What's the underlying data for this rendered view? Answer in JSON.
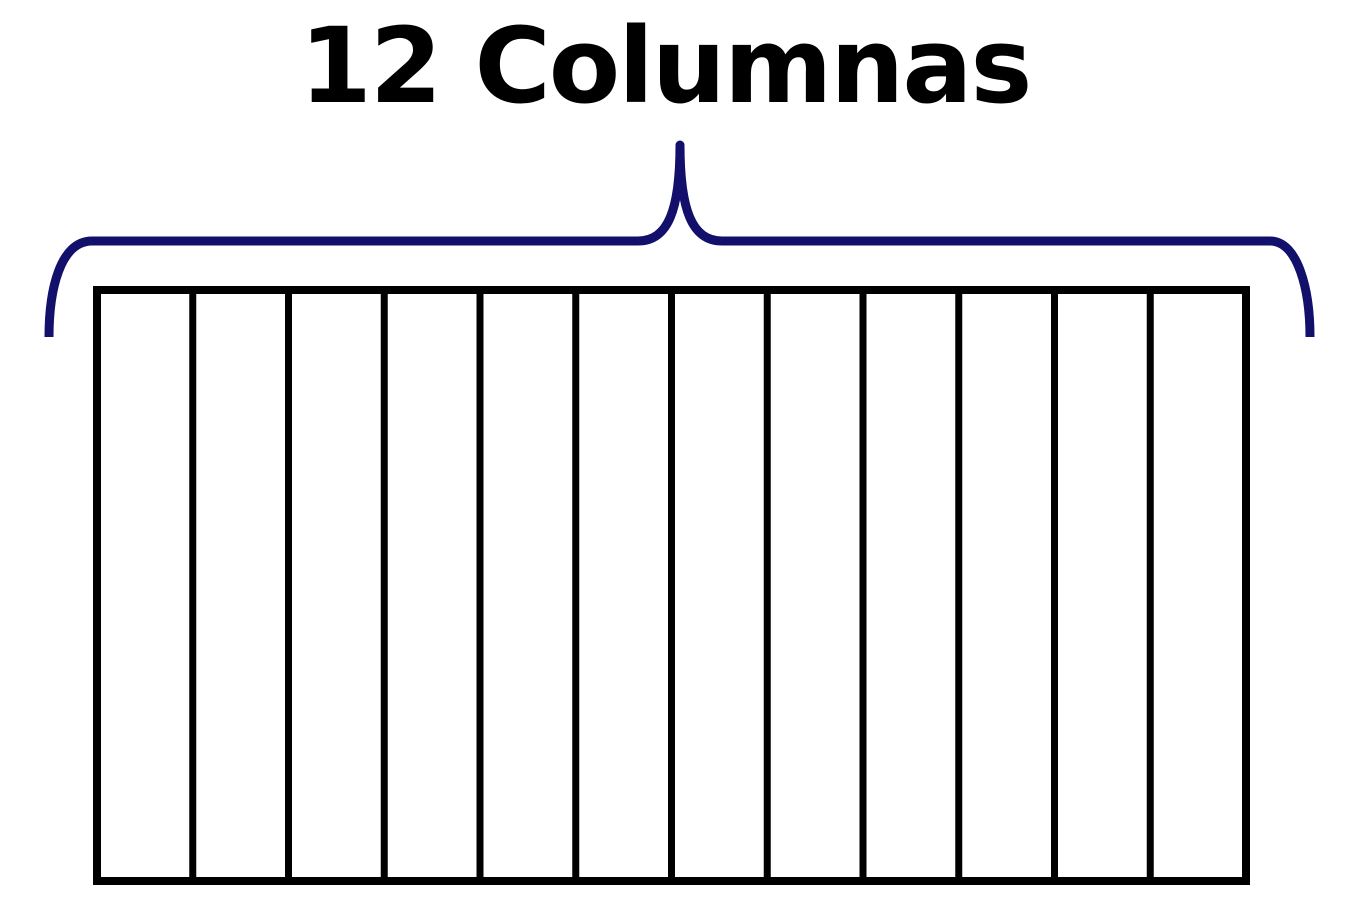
{
  "diagram": {
    "title": "12 Columnas",
    "column_count": 12,
    "brace_color": "#12106b",
    "grid_color": "#000000"
  }
}
